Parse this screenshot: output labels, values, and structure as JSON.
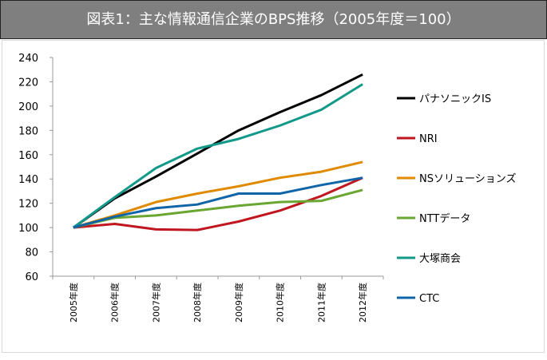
{
  "chart_data": {
    "type": "line",
    "title": "図表1：主な情報通信企業のBPS推移（2005年度＝100）",
    "xlabel": "",
    "ylabel": "",
    "categories": [
      "2005年度",
      "2006年度",
      "2007年度",
      "2008年度",
      "2009年度",
      "2010年度",
      "2011年度",
      "2012年度"
    ],
    "ylim": [
      60,
      240
    ],
    "yticks": [
      60,
      80,
      100,
      120,
      140,
      160,
      180,
      200,
      220,
      240
    ],
    "legend_position": "right",
    "series": [
      {
        "name": "パナソニックIS",
        "color": "#000000",
        "values": [
          100,
          124,
          142,
          161,
          180,
          195,
          209,
          226
        ]
      },
      {
        "name": "NRI",
        "color": "#c0161f",
        "values": [
          100,
          103,
          98.5,
          98,
          105,
          114,
          126,
          141
        ]
      },
      {
        "name": "NSソリューションズ",
        "color": "#e08a00",
        "values": [
          100,
          110,
          121,
          128,
          134,
          141,
          146,
          154
        ]
      },
      {
        "name": "NTTデータ",
        "color": "#6aa632",
        "values": [
          100,
          108,
          110,
          114,
          118,
          121,
          122,
          131
        ]
      },
      {
        "name": "大塚商会",
        "color": "#12998a",
        "values": [
          100,
          125,
          149,
          165,
          173,
          184,
          197,
          218
        ]
      },
      {
        "name": "CTC",
        "color": "#1065a8",
        "values": [
          100,
          109,
          116,
          119,
          128,
          128,
          135,
          141
        ]
      }
    ]
  }
}
